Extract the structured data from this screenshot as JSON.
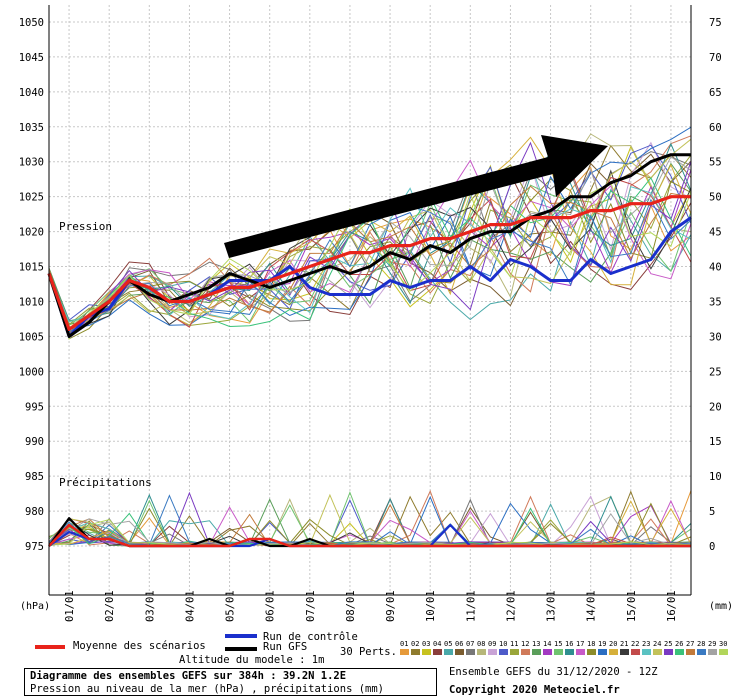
{
  "chart_data": {
    "type": "line",
    "left_axis_unit": "(hPa)",
    "right_axis_unit": "(mm)",
    "left_ticks": [
      1050,
      1045,
      1040,
      1035,
      1030,
      1025,
      1020,
      1015,
      1010,
      1005,
      1000,
      995,
      990,
      985,
      980,
      975
    ],
    "right_ticks": [
      75,
      70,
      65,
      60,
      55,
      50,
      45,
      40,
      35,
      30,
      25,
      20,
      15,
      10,
      5,
      0
    ],
    "x_ticks": [
      "01/01",
      "02/01",
      "03/01",
      "04/01",
      "05/01",
      "06/01",
      "07/01",
      "08/01",
      "09/01",
      "10/01",
      "11/01",
      "12/01",
      "13/01",
      "14/01",
      "15/01",
      "16/01"
    ],
    "x_range_hours": [
      0,
      384
    ],
    "pressure_label": "Pression",
    "precip_label": "Précipitations",
    "grid": true,
    "series": [
      {
        "name": "Moyenne des scénarios",
        "color": "#e8231a",
        "hours": [
          0,
          12,
          24,
          36,
          48,
          60,
          72,
          84,
          96,
          108,
          120,
          132,
          144,
          156,
          168,
          180,
          192,
          204,
          216,
          228,
          240,
          252,
          264,
          276,
          288,
          300,
          312,
          324,
          336,
          348,
          360,
          372,
          384
        ],
        "pressure": [
          1014,
          1006,
          1008,
          1010,
          1013,
          1012,
          1010,
          1010,
          1011,
          1012,
          1012,
          1013,
          1014,
          1015,
          1016,
          1017,
          1017,
          1018,
          1018,
          1019,
          1019,
          1020,
          1021,
          1021,
          1022,
          1022,
          1022,
          1023,
          1023,
          1024,
          1024,
          1025,
          1025
        ],
        "precip": [
          0,
          3,
          1,
          1,
          0,
          0,
          0,
          0,
          0,
          0,
          1,
          1,
          0,
          0,
          0,
          0,
          0,
          0,
          0,
          0,
          0,
          0,
          0,
          0,
          0,
          0,
          0,
          0,
          0,
          0,
          0,
          0,
          0
        ]
      },
      {
        "name": "Run de contrôle",
        "color": "#1a2fcc",
        "hours": [
          0,
          12,
          24,
          36,
          48,
          60,
          72,
          84,
          96,
          108,
          120,
          132,
          144,
          156,
          168,
          180,
          192,
          204,
          216,
          228,
          240,
          252,
          264,
          276,
          288,
          300,
          312,
          324,
          336,
          348,
          360,
          372,
          384
        ],
        "pressure": [
          1014,
          1005,
          1008,
          1009,
          1013,
          1012,
          1010,
          1010,
          1011,
          1013,
          1013,
          1013,
          1015,
          1012,
          1011,
          1011,
          1011,
          1013,
          1012,
          1013,
          1013,
          1015,
          1013,
          1016,
          1015,
          1013,
          1013,
          1016,
          1014,
          1015,
          1016,
          1020,
          1022
        ],
        "precip": [
          0,
          2,
          1,
          1,
          0,
          0,
          0,
          0,
          0,
          0,
          0,
          1,
          0,
          0,
          0,
          0,
          0,
          0,
          0,
          0,
          3,
          0,
          0,
          0,
          0,
          0,
          0,
          0,
          0,
          0,
          0,
          0,
          0
        ]
      },
      {
        "name": "Run GFS",
        "color": "#000000",
        "hours": [
          0,
          12,
          24,
          36,
          48,
          60,
          72,
          84,
          96,
          108,
          120,
          132,
          144,
          156,
          168,
          180,
          192,
          204,
          216,
          228,
          240,
          252,
          264,
          276,
          288,
          300,
          312,
          324,
          336,
          348,
          360,
          372,
          384
        ],
        "pressure": [
          1014,
          1005,
          1007,
          1010,
          1013,
          1011,
          1010,
          1011,
          1012,
          1014,
          1013,
          1012,
          1013,
          1014,
          1015,
          1014,
          1015,
          1017,
          1016,
          1018,
          1017,
          1019,
          1020,
          1020,
          1022,
          1023,
          1025,
          1025,
          1027,
          1028,
          1030,
          1031,
          1031
        ],
        "precip": [
          0,
          4,
          1,
          1,
          0,
          0,
          0,
          0,
          1,
          0,
          1,
          0,
          0,
          1,
          0,
          0,
          0,
          0,
          0,
          0,
          0,
          0,
          0,
          0,
          0,
          0,
          0,
          0,
          0,
          0,
          0,
          0,
          0
        ]
      }
    ],
    "perturbations_label": "30 Perts.",
    "perturbation_numbers": [
      "01",
      "02",
      "03",
      "04",
      "05",
      "06",
      "07",
      "08",
      "09",
      "10",
      "11",
      "12",
      "13",
      "14",
      "15",
      "16",
      "17",
      "18",
      "19",
      "20",
      "21",
      "22",
      "23",
      "24",
      "25",
      "26",
      "27",
      "28",
      "29",
      "30"
    ],
    "perturbation_colors": [
      "#e69a3a",
      "#8f7b2d",
      "#c7c21f",
      "#8a3e3b",
      "#4aa9a9",
      "#7a5c2e",
      "#777777",
      "#b7b77a",
      "#c9a3d6",
      "#4d5bc9",
      "#9aa63a",
      "#d07a5a",
      "#5a9e5a",
      "#a33ac2",
      "#6fc36f",
      "#2f8f8f",
      "#c85ac8",
      "#8c8c2a",
      "#2a6ec2",
      "#d6b03a",
      "#3a3a3a",
      "#c24a4a",
      "#5ac2c2",
      "#c2c25a",
      "#7a3ac2",
      "#3ac27a",
      "#c27a3a",
      "#3a7ac2",
      "#a3a3a3",
      "#b2d65a"
    ]
  },
  "legend": {
    "mean": "Moyenne des scénarios",
    "control": "Run de contrôle",
    "gfs": "Run GFS",
    "perts": "30 Perts.",
    "altitude": "Altitude du modele : 1m"
  },
  "footer": {
    "title": "Diagramme des ensembles GEFS sur 384h : 39.2N 1.2E",
    "subtitle": "Pression au niveau de la mer (hPa) , précipitations (mm)",
    "run": "Ensemble GEFS du 31/12/2020 - 12Z",
    "copyright": "Copyright 2020 Meteociel.fr"
  }
}
